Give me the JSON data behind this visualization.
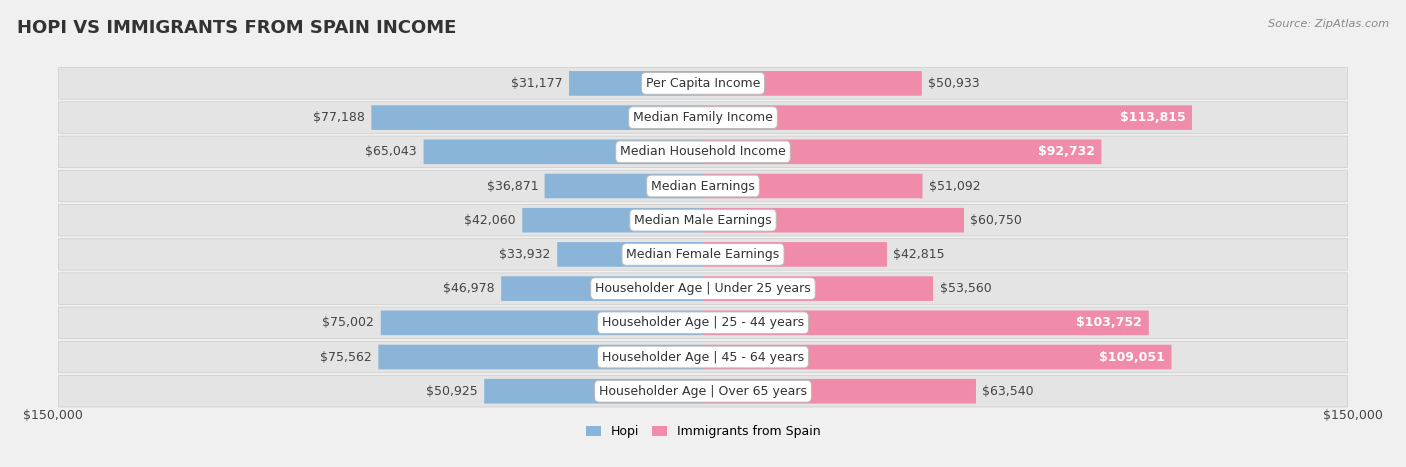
{
  "title": "HOPI VS IMMIGRANTS FROM SPAIN INCOME",
  "source": "Source: ZipAtlas.com",
  "categories": [
    "Per Capita Income",
    "Median Family Income",
    "Median Household Income",
    "Median Earnings",
    "Median Male Earnings",
    "Median Female Earnings",
    "Householder Age | Under 25 years",
    "Householder Age | 25 - 44 years",
    "Householder Age | 45 - 64 years",
    "Householder Age | Over 65 years"
  ],
  "hopi_values": [
    31177,
    77188,
    65043,
    36871,
    42060,
    33932,
    46978,
    75002,
    75562,
    50925
  ],
  "spain_values": [
    50933,
    113815,
    92732,
    51092,
    60750,
    42815,
    53560,
    103752,
    109051,
    63540
  ],
  "hopi_labels": [
    "$31,177",
    "$77,188",
    "$65,043",
    "$36,871",
    "$42,060",
    "$33,932",
    "$46,978",
    "$75,002",
    "$75,562",
    "$50,925"
  ],
  "spain_labels": [
    "$50,933",
    "$113,815",
    "$92,732",
    "$51,092",
    "$60,750",
    "$42,815",
    "$53,560",
    "$103,752",
    "$109,051",
    "$63,540"
  ],
  "hopi_color": "#8ab4d8",
  "spain_color": "#f08caa",
  "spain_color_bold": "#e8507a",
  "max_value": 150000,
  "axis_label": "$150,000",
  "hopi_legend": "Hopi",
  "spain_legend": "Immigrants from Spain",
  "background_color": "#f0f0f0",
  "row_bg_color": "#e8e8e8",
  "bar_height": 0.72,
  "label_fontsize": 9.0,
  "title_fontsize": 13,
  "category_fontsize": 9.0,
  "spain_inside_threshold": 90000
}
